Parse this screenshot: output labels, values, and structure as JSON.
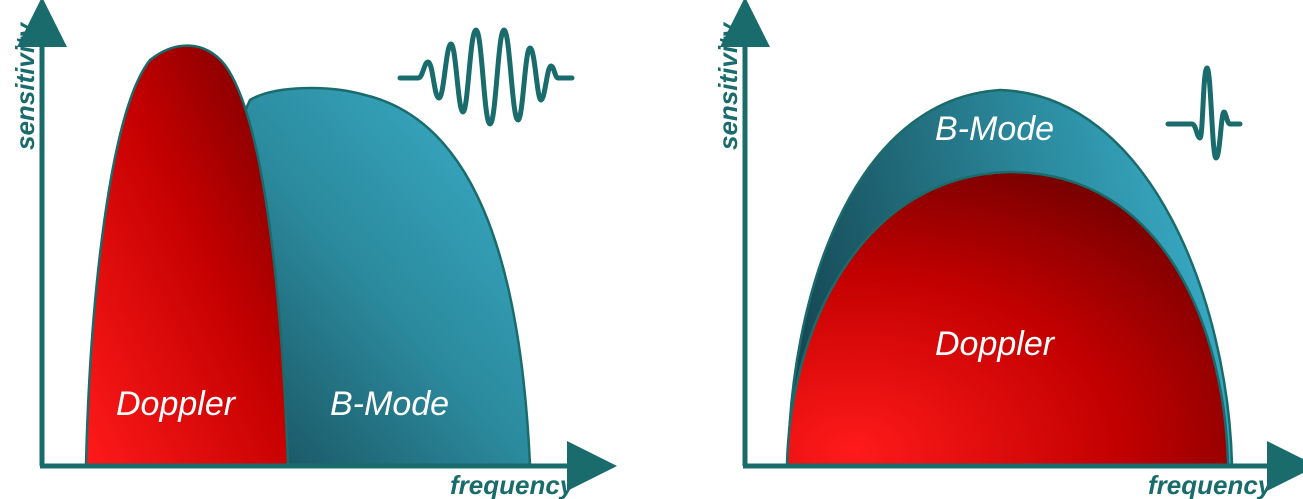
{
  "panels": [
    {
      "id": "left",
      "yaxis_label": "sensitivity",
      "xaxis_label": "frequency",
      "regions": [
        {
          "label": "Doppler",
          "color": "#cc0000"
        },
        {
          "label": "B-Mode",
          "color": "#2a8a9a"
        }
      ],
      "pulse": "long-pulse-icon"
    },
    {
      "id": "right",
      "yaxis_label": "sensitivity",
      "xaxis_label": "frequency",
      "regions": [
        {
          "label": "B-Mode",
          "color": "#2a8a9a"
        },
        {
          "label": "Doppler",
          "color": "#cc0000"
        }
      ],
      "pulse": "short-pulse-icon"
    }
  ],
  "colors": {
    "axis": "#1a6b6b",
    "doppler_light": "#ff1a1a",
    "doppler_dark": "#7a0000",
    "bmode_light": "#36a4bf",
    "bmode_dark": "#1b5563"
  }
}
